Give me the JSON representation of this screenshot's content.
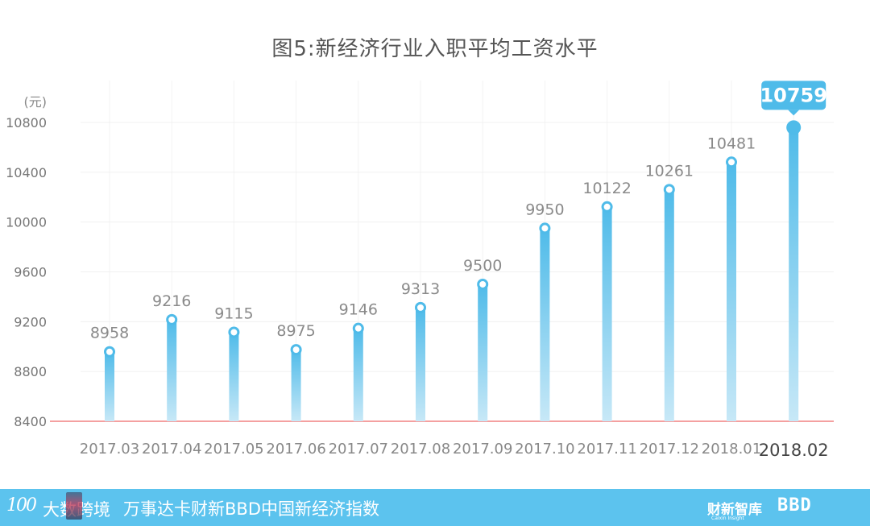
{
  "chart_data": {
    "type": "bar",
    "title": "图5:新经济行业入职平均工资水平",
    "y_unit": "(元)",
    "categories": [
      "2017.03",
      "2017.04",
      "2017.05",
      "2017.06",
      "2017.07",
      "2017.08",
      "2017.09",
      "2017.10",
      "2017.11",
      "2017.12",
      "2018.01",
      "2018.02"
    ],
    "values": [
      8958,
      9216,
      9115,
      8975,
      9146,
      9313,
      9500,
      9950,
      10122,
      10261,
      10481,
      10759
    ],
    "ylim": [
      8400,
      10800
    ],
    "yticks": [
      8400,
      8800,
      9200,
      9600,
      10000,
      10400,
      10800
    ],
    "grid": true,
    "highlight_index": 11,
    "colors": {
      "bar_top": "#4fbbe9",
      "bar_bottom": "#c7e8f7",
      "baseline": "#f08080",
      "callout": "#4fbbe9"
    }
  },
  "footer": {
    "logo_mark": "100",
    "logo_text": "大数跨境",
    "subtitle": "万事达卡财新BBD中国新经济指数",
    "brand_cn": "财新智库",
    "brand_en": "Caixin Insight",
    "brand_bbd": "BBD"
  }
}
